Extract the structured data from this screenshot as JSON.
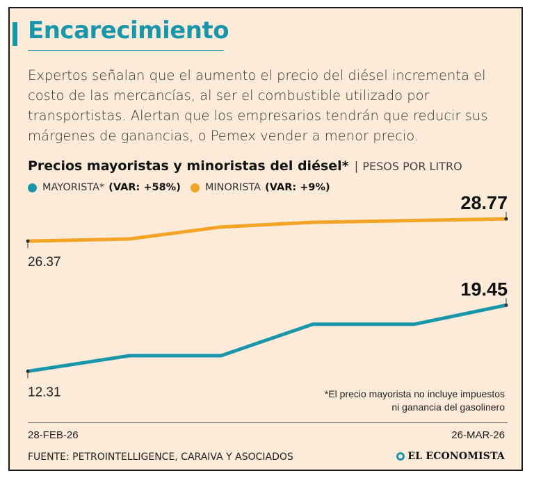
{
  "title": "Encarecimiento",
  "intro": "Expertos señalan que el aumento el precio del diésel incrementa el costo de las mercancías, al ser el combustible utilizado por transportistas. Alertan que los empresarios tendrán que reducir sus márgenes de ganancias, o Pemex vender a menor precio.",
  "subtitle": {
    "bold": "Precios mayoristas y minoristas del diésel*",
    "sep": "|",
    "unit": "PESOS POR LITRO"
  },
  "legend": [
    {
      "name": "MAYORISTA*",
      "var": "(VAR: +58%)"
    },
    {
      "name": "MINORISTA",
      "var": "(VAR: +9%)"
    }
  ],
  "colors": {
    "mayorista": "#1a96aa",
    "minorista": "#f3a427"
  },
  "chart_data": {
    "type": "line",
    "x_start": "28-FEB-26",
    "x_end": "26-MAR-26",
    "x": [
      0,
      7,
      13,
      20,
      28,
      29,
      34,
      35,
      38,
      47
    ],
    "ylim": [
      9.5,
      30.5
    ],
    "series": [
      {
        "name": "MINORISTA",
        "x": [
          0,
          10,
          19,
          28,
          47
        ],
        "values": [
          26.37,
          26.6,
          27.9,
          28.4,
          28.77
        ],
        "start_label": "26.37",
        "end_label": "28.77"
      },
      {
        "name": "MAYORISTA",
        "x": [
          0,
          10,
          18,
          19,
          28,
          29,
          38,
          47
        ],
        "values": [
          12.31,
          14.0,
          14.0,
          14.0,
          17.4,
          17.4,
          17.4,
          19.45
        ],
        "start_label": "12.31",
        "end_label": "19.45"
      }
    ]
  },
  "footnote": [
    "*El precio mayorista no incluye impuestos",
    "ni ganancia del gasolinero"
  ],
  "date_start": "28-FEB-26",
  "date_end": "26-MAR-26",
  "source": "FUENTE: PETROINTELLIGENCE, CARAIVA Y ASOCIADOS",
  "logo": "EL ECONOMISTA"
}
